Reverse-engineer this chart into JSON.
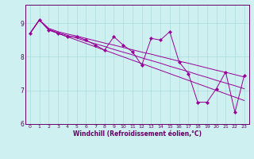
{
  "title": "",
  "xlabel": "Windchill (Refroidissement éolien,°C)",
  "ylabel": "",
  "background_color": "#cef0f0",
  "line_color": "#990099",
  "grid_color": "#aadddd",
  "axis_color": "#660066",
  "xlim": [
    -0.5,
    23.5
  ],
  "ylim": [
    6.0,
    9.55
  ],
  "yticks": [
    6,
    7,
    8,
    9
  ],
  "xticks": [
    0,
    1,
    2,
    3,
    4,
    5,
    6,
    7,
    8,
    9,
    10,
    11,
    12,
    13,
    14,
    15,
    16,
    17,
    18,
    19,
    20,
    21,
    22,
    23
  ],
  "series_main": [
    8.7,
    9.1,
    8.8,
    8.7,
    8.6,
    8.6,
    8.5,
    8.35,
    8.2,
    8.6,
    8.35,
    8.15,
    7.75,
    8.55,
    8.5,
    8.75,
    7.85,
    7.5,
    6.65,
    6.65,
    7.05,
    7.55,
    6.35,
    7.45
  ],
  "series_trend_high": [
    8.7,
    9.1,
    8.85,
    8.75,
    8.68,
    8.62,
    8.55,
    8.48,
    8.41,
    8.35,
    8.28,
    8.21,
    8.14,
    8.08,
    8.01,
    7.94,
    7.87,
    7.81,
    7.74,
    7.67,
    7.6,
    7.54,
    7.47,
    7.4
  ],
  "series_trend_low": [
    8.7,
    9.1,
    8.8,
    8.7,
    8.6,
    8.5,
    8.4,
    8.3,
    8.2,
    8.1,
    8.0,
    7.9,
    7.8,
    7.7,
    7.6,
    7.5,
    7.4,
    7.3,
    7.2,
    7.1,
    7.0,
    6.9,
    6.8,
    6.7
  ],
  "series_mid": [
    8.7,
    9.1,
    8.82,
    8.72,
    8.64,
    8.56,
    8.47,
    8.39,
    8.31,
    8.22,
    8.14,
    8.06,
    7.97,
    7.89,
    7.81,
    7.72,
    7.64,
    7.56,
    7.47,
    7.39,
    7.3,
    7.22,
    7.14,
    7.05
  ]
}
